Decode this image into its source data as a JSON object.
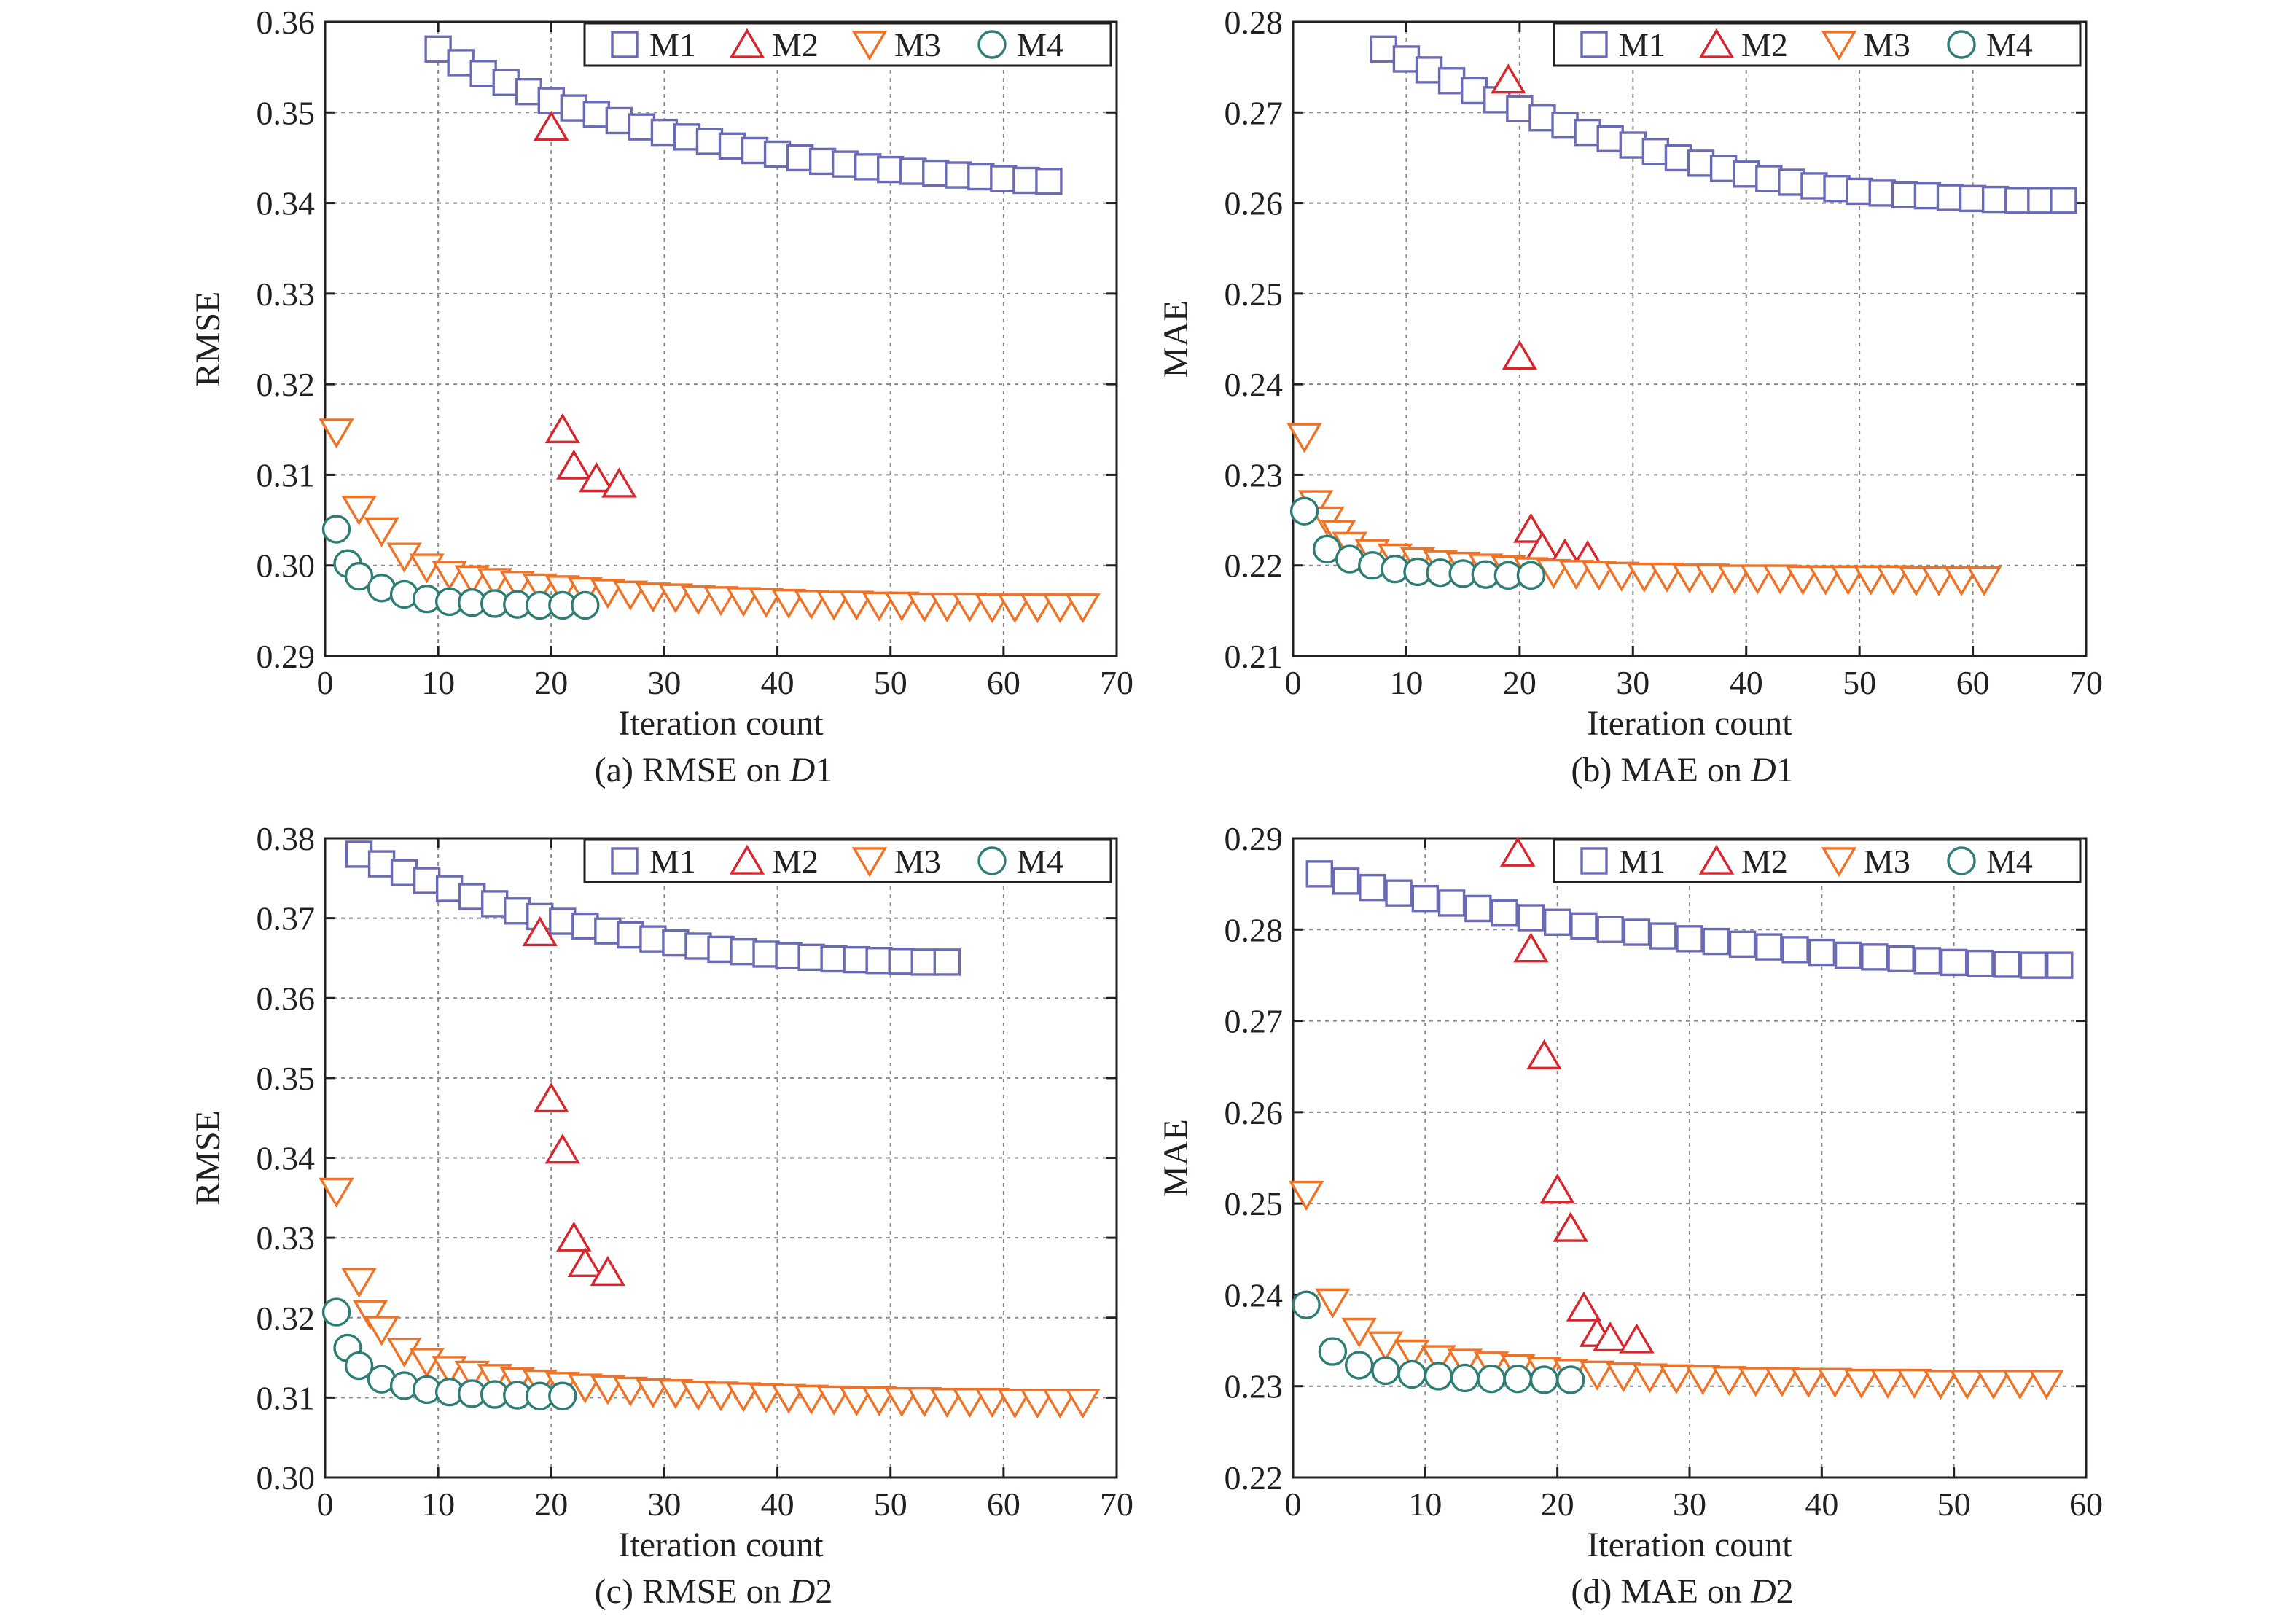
{
  "colors": {
    "M1": "#6b6bb5",
    "M2": "#d7262e",
    "M3": "#ee7326",
    "M4": "#2e7d74",
    "axis": "#231f20",
    "grid": "#8a8a8a"
  },
  "chart_data": [
    {
      "type": "scatter",
      "caption_prefix": "(a) RMSE on ",
      "caption_italic": "D",
      "caption_suffix": "1",
      "xlabel": "Iteration count",
      "ylabel": "RMSE",
      "xlim": [
        0,
        70
      ],
      "ylim": [
        0.29,
        0.36
      ],
      "xticks": [
        0,
        10,
        20,
        30,
        40,
        50,
        60,
        70
      ],
      "yticks": [
        0.29,
        0.3,
        0.31,
        0.32,
        0.33,
        0.34,
        0.35,
        0.36
      ],
      "ytick_labels": [
        "0.29",
        "0.30",
        "0.31",
        "0.32",
        "0.33",
        "0.34",
        "0.35",
        "0.36"
      ],
      "grid": true,
      "legend_position": "top-right",
      "series": [
        {
          "name": "M1",
          "marker": "square",
          "x": [
            10,
            12,
            14,
            16,
            18,
            20,
            22,
            24,
            26,
            28,
            30,
            32,
            34,
            36,
            38,
            40,
            42,
            44,
            46,
            48,
            50,
            52,
            54,
            56,
            58,
            60,
            62,
            64
          ],
          "y": [
            0.357,
            0.3555,
            0.3543,
            0.3533,
            0.3523,
            0.3513,
            0.3505,
            0.3498,
            0.3491,
            0.3484,
            0.3478,
            0.3473,
            0.3468,
            0.3463,
            0.3458,
            0.3454,
            0.345,
            0.3446,
            0.3443,
            0.344,
            0.3437,
            0.3435,
            0.3433,
            0.3431,
            0.3429,
            0.3427,
            0.3425,
            0.3424
          ]
        },
        {
          "name": "M2",
          "marker": "triangle-up",
          "x": [
            20,
            21,
            22,
            24,
            26
          ],
          "y": [
            0.3484,
            0.315,
            0.311,
            0.3096,
            0.309
          ]
        },
        {
          "name": "M3",
          "marker": "triangle-down",
          "x": [
            1,
            3,
            5,
            7,
            9,
            11,
            13,
            15,
            17,
            19,
            21,
            23,
            25,
            27,
            29,
            31,
            33,
            35,
            37,
            39,
            41,
            43,
            45,
            47,
            49,
            51,
            53,
            55,
            57,
            59,
            61,
            63,
            65,
            67
          ],
          "y": [
            0.3147,
            0.3062,
            0.3038,
            0.301,
            0.2998,
            0.299,
            0.2985,
            0.2982,
            0.2979,
            0.2976,
            0.2974,
            0.2972,
            0.297,
            0.2968,
            0.2966,
            0.2965,
            0.2963,
            0.2962,
            0.2961,
            0.296,
            0.2959,
            0.2958,
            0.2957,
            0.2957,
            0.2956,
            0.2956,
            0.2955,
            0.2955,
            0.2955,
            0.2954,
            0.2954,
            0.2954,
            0.2954,
            0.2954
          ]
        },
        {
          "name": "M4",
          "marker": "circle",
          "x": [
            1,
            2,
            3,
            5,
            7,
            9,
            11,
            13,
            15,
            17,
            19,
            21,
            23
          ],
          "y": [
            0.304,
            0.3002,
            0.2988,
            0.2975,
            0.2968,
            0.2963,
            0.296,
            0.2959,
            0.2958,
            0.2957,
            0.2956,
            0.2956,
            0.2956
          ]
        }
      ]
    },
    {
      "type": "scatter",
      "caption_prefix": "(b) MAE on ",
      "caption_italic": "D",
      "caption_suffix": "1",
      "xlabel": "Iteration count",
      "ylabel": "MAE",
      "xlim": [
        0,
        70
      ],
      "ylim": [
        0.21,
        0.28
      ],
      "xticks": [
        0,
        10,
        20,
        30,
        40,
        50,
        60,
        70
      ],
      "yticks": [
        0.21,
        0.22,
        0.23,
        0.24,
        0.25,
        0.26,
        0.27,
        0.28
      ],
      "ytick_labels": [
        "0.21",
        "0.22",
        "0.23",
        "0.24",
        "0.25",
        "0.26",
        "0.27",
        "0.28"
      ],
      "grid": true,
      "legend_position": "top-right",
      "series": [
        {
          "name": "M1",
          "marker": "square",
          "x": [
            8,
            10,
            12,
            14,
            16,
            18,
            20,
            22,
            24,
            26,
            28,
            30,
            32,
            34,
            36,
            38,
            40,
            42,
            44,
            46,
            48,
            50,
            52,
            54,
            56,
            58,
            60,
            62,
            64,
            66,
            68
          ],
          "y": [
            0.277,
            0.2759,
            0.2747,
            0.2735,
            0.2724,
            0.2714,
            0.2704,
            0.2694,
            0.2686,
            0.2678,
            0.2671,
            0.2664,
            0.2657,
            0.265,
            0.2644,
            0.2638,
            0.2632,
            0.2627,
            0.2623,
            0.2619,
            0.2616,
            0.2613,
            0.2611,
            0.2609,
            0.2608,
            0.2606,
            0.2605,
            0.2604,
            0.2603,
            0.2603,
            0.2603
          ]
        },
        {
          "name": "M2",
          "marker": "triangle-up",
          "x": [
            19,
            20,
            21,
            22,
            24,
            26
          ],
          "y": [
            0.2736,
            0.2431,
            0.224,
            0.222,
            0.2212,
            0.221
          ]
        },
        {
          "name": "M3",
          "marker": "triangle-down",
          "x": [
            1,
            2,
            3,
            4,
            5,
            7,
            9,
            11,
            13,
            15,
            17,
            19,
            21,
            23,
            25,
            27,
            29,
            31,
            33,
            35,
            37,
            39,
            41,
            43,
            45,
            47,
            49,
            51,
            53,
            55,
            57,
            59,
            61
          ],
          "y": [
            0.2342,
            0.2268,
            0.225,
            0.2235,
            0.2222,
            0.2214,
            0.2209,
            0.2205,
            0.2202,
            0.22,
            0.2198,
            0.2196,
            0.2194,
            0.2192,
            0.2191,
            0.219,
            0.2189,
            0.2188,
            0.2188,
            0.2187,
            0.2187,
            0.2186,
            0.2186,
            0.2186,
            0.2185,
            0.2185,
            0.2185,
            0.2185,
            0.2185,
            0.2184,
            0.2184,
            0.2184,
            0.2184
          ]
        },
        {
          "name": "M4",
          "marker": "circle",
          "x": [
            1,
            3,
            5,
            7,
            9,
            11,
            13,
            15,
            17,
            19,
            21
          ],
          "y": [
            0.226,
            0.2218,
            0.2207,
            0.22,
            0.2196,
            0.2193,
            0.2192,
            0.2191,
            0.219,
            0.2189,
            0.2189
          ]
        }
      ]
    },
    {
      "type": "scatter",
      "caption_prefix": "(c) RMSE on ",
      "caption_italic": "D",
      "caption_suffix": "2",
      "xlabel": "Iteration count",
      "ylabel": "RMSE",
      "xlim": [
        0,
        70
      ],
      "ylim": [
        0.3,
        0.38
      ],
      "xticks": [
        0,
        10,
        20,
        30,
        40,
        50,
        60,
        70
      ],
      "yticks": [
        0.3,
        0.31,
        0.32,
        0.33,
        0.34,
        0.35,
        0.36,
        0.37,
        0.38
      ],
      "ytick_labels": [
        "0.30",
        "0.31",
        "0.32",
        "0.33",
        "0.34",
        "0.35",
        "0.36",
        "0.37",
        "0.38"
      ],
      "grid": true,
      "legend_position": "top-right",
      "series": [
        {
          "name": "M1",
          "marker": "square",
          "x": [
            3,
            5,
            7,
            9,
            11,
            13,
            15,
            17,
            19,
            21,
            23,
            25,
            27,
            29,
            31,
            33,
            35,
            37,
            39,
            41,
            43,
            45,
            47,
            49,
            51,
            53,
            55
          ],
          "y": [
            0.378,
            0.3768,
            0.3757,
            0.3747,
            0.3737,
            0.3727,
            0.3718,
            0.3709,
            0.3702,
            0.3696,
            0.369,
            0.3684,
            0.3679,
            0.3674,
            0.3669,
            0.3665,
            0.3661,
            0.3658,
            0.3655,
            0.3653,
            0.3651,
            0.3649,
            0.3648,
            0.3647,
            0.3646,
            0.3645,
            0.3645
          ]
        },
        {
          "name": "M2",
          "marker": "triangle-up",
          "x": [
            19,
            20,
            21,
            22,
            23,
            25
          ],
          "y": [
            0.3682,
            0.3474,
            0.341,
            0.33,
            0.3268,
            0.3257
          ]
        },
        {
          "name": "M3",
          "marker": "triangle-down",
          "x": [
            1,
            3,
            4,
            5,
            7,
            9,
            11,
            13,
            15,
            17,
            19,
            21,
            23,
            25,
            27,
            29,
            31,
            33,
            35,
            37,
            39,
            41,
            43,
            45,
            47,
            49,
            51,
            53,
            55,
            57,
            59,
            61,
            63,
            65,
            67
          ],
          "y": [
            0.3358,
            0.3245,
            0.3205,
            0.3185,
            0.3158,
            0.3145,
            0.3135,
            0.3129,
            0.3125,
            0.3121,
            0.3118,
            0.3115,
            0.3113,
            0.3111,
            0.3109,
            0.3107,
            0.3106,
            0.3104,
            0.3103,
            0.3102,
            0.3101,
            0.31,
            0.3099,
            0.3098,
            0.3097,
            0.3097,
            0.3096,
            0.3096,
            0.3095,
            0.3095,
            0.3095,
            0.3094,
            0.3094,
            0.3094,
            0.3094
          ]
        },
        {
          "name": "M4",
          "marker": "circle",
          "x": [
            1,
            2,
            3,
            5,
            7,
            9,
            11,
            13,
            15,
            17,
            19,
            21
          ],
          "y": [
            0.3207,
            0.3162,
            0.314,
            0.3123,
            0.3115,
            0.311,
            0.3107,
            0.3105,
            0.3104,
            0.3103,
            0.3102,
            0.3102
          ]
        }
      ]
    },
    {
      "type": "scatter",
      "caption_prefix": "(d) MAE on ",
      "caption_italic": "D",
      "caption_suffix": "2",
      "xlabel": "Iteration count",
      "ylabel": "MAE",
      "xlim": [
        0,
        60
      ],
      "ylim": [
        0.22,
        0.29
      ],
      "xticks": [
        0,
        10,
        20,
        30,
        40,
        50,
        60
      ],
      "yticks": [
        0.22,
        0.23,
        0.24,
        0.25,
        0.26,
        0.27,
        0.28,
        0.29
      ],
      "ytick_labels": [
        "0.22",
        "0.23",
        "0.24",
        "0.25",
        "0.26",
        "0.27",
        "0.28",
        "0.29"
      ],
      "grid": true,
      "legend_position": "top-right",
      "series": [
        {
          "name": "M1",
          "marker": "square",
          "x": [
            2,
            4,
            6,
            8,
            10,
            12,
            14,
            16,
            18,
            20,
            22,
            24,
            26,
            28,
            30,
            32,
            34,
            36,
            38,
            40,
            42,
            44,
            46,
            48,
            50,
            52,
            54,
            56,
            58
          ],
          "y": [
            0.2861,
            0.2853,
            0.2846,
            0.284,
            0.2834,
            0.2829,
            0.2823,
            0.2818,
            0.2813,
            0.2808,
            0.2804,
            0.28,
            0.2797,
            0.2793,
            0.279,
            0.2787,
            0.2784,
            0.2781,
            0.2778,
            0.2775,
            0.2772,
            0.277,
            0.2768,
            0.2766,
            0.2764,
            0.2763,
            0.2762,
            0.2761,
            0.2761
          ]
        },
        {
          "name": "M2",
          "marker": "triangle-up",
          "x": [
            17,
            18,
            19,
            20,
            21,
            22,
            23,
            24,
            26
          ],
          "y": [
            0.2884,
            0.2779,
            0.2662,
            0.2515,
            0.2473,
            0.2386,
            0.2358,
            0.2353,
            0.2351
          ]
        },
        {
          "name": "M3",
          "marker": "triangle-down",
          "x": [
            1,
            3,
            5,
            7,
            9,
            11,
            13,
            15,
            17,
            19,
            21,
            23,
            25,
            27,
            29,
            31,
            33,
            35,
            37,
            39,
            41,
            43,
            45,
            47,
            49,
            51,
            53,
            55,
            57
          ],
          "y": [
            0.251,
            0.2392,
            0.236,
            0.2345,
            0.2336,
            0.233,
            0.2326,
            0.2323,
            0.232,
            0.2317,
            0.2315,
            0.2313,
            0.2311,
            0.231,
            0.2309,
            0.2308,
            0.2307,
            0.2306,
            0.2306,
            0.2305,
            0.2305,
            0.2304,
            0.2304,
            0.2304,
            0.2303,
            0.2303,
            0.2303,
            0.2303,
            0.2303
          ]
        },
        {
          "name": "M4",
          "marker": "circle",
          "x": [
            1,
            3,
            5,
            7,
            9,
            11,
            13,
            15,
            17,
            19,
            21
          ],
          "y": [
            0.2389,
            0.2338,
            0.2323,
            0.2317,
            0.2313,
            0.2311,
            0.2309,
            0.2308,
            0.2308,
            0.2307,
            0.2307
          ]
        }
      ]
    }
  ]
}
